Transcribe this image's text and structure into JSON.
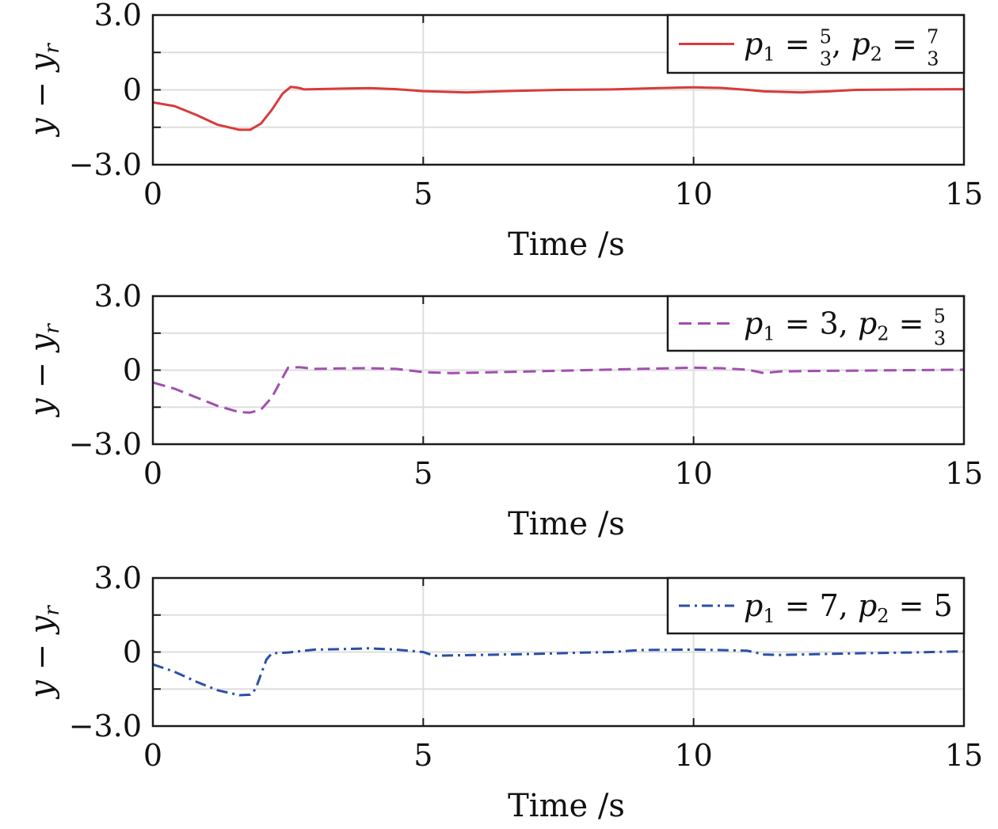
{
  "chart_data": [
    {
      "type": "line",
      "xlabel": "Time /s",
      "ylabel": "y − y",
      "ylabel_sub": "r",
      "xlim": [
        0,
        15
      ],
      "ylim": [
        -3.0,
        3.0
      ],
      "xticks": [
        0,
        5,
        10,
        15
      ],
      "xtick_labels": [
        "0",
        "5",
        "10",
        "15"
      ],
      "ytick_labels": [
        "3.0",
        "0",
        "−3.0"
      ],
      "grid": true,
      "legend": "top-right",
      "series": [
        {
          "legend": {
            "a": "p",
            "a_sub": "1",
            "eq1": " = ",
            "frac1_num": "5",
            "frac1_den": "3",
            "sep": ", ",
            "b": "p",
            "b_sub": "2",
            "eq2": " = ",
            "frac2_num": "7",
            "frac2_den": "3"
          },
          "color": "#d93a3a",
          "dash": "solid",
          "x": [
            0,
            0.4,
            0.8,
            1.2,
            1.6,
            1.8,
            2.0,
            2.2,
            2.4,
            2.55,
            2.7,
            2.8,
            3.5,
            4.0,
            4.5,
            5.0,
            5.8,
            6.5,
            7.5,
            8.5,
            9.5,
            10.0,
            10.5,
            11.0,
            11.3,
            12.0,
            12.5,
            13.0,
            14.0,
            15.0
          ],
          "y": [
            -0.5,
            -0.65,
            -1.0,
            -1.4,
            -1.6,
            -1.6,
            -1.35,
            -0.8,
            -0.15,
            0.12,
            0.08,
            0.02,
            0.05,
            0.07,
            0.03,
            -0.05,
            -0.1,
            -0.05,
            0.0,
            0.02,
            0.08,
            0.1,
            0.08,
            0.0,
            -0.06,
            -0.1,
            -0.06,
            0.0,
            0.02,
            0.03
          ]
        }
      ]
    },
    {
      "type": "line",
      "xlabel": "Time /s",
      "ylabel": "y − y",
      "ylabel_sub": "r",
      "xlim": [
        0,
        15
      ],
      "ylim": [
        -3.0,
        3.0
      ],
      "xticks": [
        0,
        5,
        10,
        15
      ],
      "xtick_labels": [
        "0",
        "5",
        "10",
        "15"
      ],
      "ytick_labels": [
        "3.0",
        "0",
        "−3.0"
      ],
      "grid": true,
      "legend": "top-right",
      "series": [
        {
          "legend": {
            "a": "p",
            "a_sub": "1",
            "eq1": " = 3",
            "frac1_num": "",
            "frac1_den": "",
            "sep": ", ",
            "b": "p",
            "b_sub": "2",
            "eq2": " = ",
            "frac2_num": "5",
            "frac2_den": "3"
          },
          "color": "#a14fae",
          "dash": "dashed",
          "x": [
            0,
            0.4,
            0.8,
            1.2,
            1.6,
            1.8,
            2.0,
            2.2,
            2.35,
            2.5,
            2.7,
            3.0,
            3.5,
            4.0,
            4.5,
            5.0,
            5.5,
            6.0,
            7.0,
            8.0,
            9.0,
            10.0,
            10.5,
            11.0,
            11.3,
            11.6,
            12.0,
            13.0,
            14.0,
            15.0
          ],
          "y": [
            -0.5,
            -0.75,
            -1.1,
            -1.45,
            -1.7,
            -1.72,
            -1.6,
            -1.1,
            -0.5,
            0.1,
            0.12,
            0.05,
            0.07,
            0.08,
            0.05,
            -0.08,
            -0.12,
            -0.1,
            -0.05,
            0.0,
            0.05,
            0.1,
            0.08,
            0.02,
            -0.12,
            -0.05,
            -0.04,
            -0.02,
            0.0,
            0.02
          ]
        }
      ]
    },
    {
      "type": "line",
      "xlabel": "Time /s",
      "ylabel": "y − y",
      "ylabel_sub": "r",
      "xlim": [
        0,
        15
      ],
      "ylim": [
        -3.0,
        3.0
      ],
      "xticks": [
        0,
        5,
        10,
        15
      ],
      "xtick_labels": [
        "0",
        "5",
        "10",
        "15"
      ],
      "ytick_labels": [
        "3.0",
        "0",
        "−3.0"
      ],
      "grid": true,
      "legend": "top-right",
      "series": [
        {
          "legend": {
            "a": "p",
            "a_sub": "1",
            "eq1": " = 7",
            "frac1_num": "",
            "frac1_den": "",
            "sep": ", ",
            "b": "p",
            "b_sub": "2",
            "eq2": " = 5",
            "frac2_num": "",
            "frac2_den": ""
          },
          "color": "#2b4fa8",
          "dash": "dashdot",
          "x": [
            0,
            0.4,
            0.8,
            1.2,
            1.6,
            1.8,
            1.9,
            2.0,
            2.1,
            2.2,
            2.5,
            3.0,
            3.5,
            4.0,
            4.5,
            5.0,
            5.2,
            6.0,
            7.0,
            8.0,
            8.5,
            9.0,
            10.0,
            10.5,
            11.0,
            11.3,
            11.6,
            12.0,
            13.0,
            14.0,
            15.0
          ],
          "y": [
            -0.5,
            -0.8,
            -1.2,
            -1.55,
            -1.75,
            -1.73,
            -1.5,
            -0.9,
            -0.3,
            -0.05,
            -0.02,
            0.1,
            0.12,
            0.15,
            0.1,
            0.0,
            -0.15,
            -0.12,
            -0.08,
            -0.02,
            0.0,
            0.08,
            0.1,
            0.08,
            0.05,
            -0.1,
            -0.12,
            -0.1,
            -0.05,
            -0.02,
            0.03
          ]
        }
      ]
    }
  ]
}
